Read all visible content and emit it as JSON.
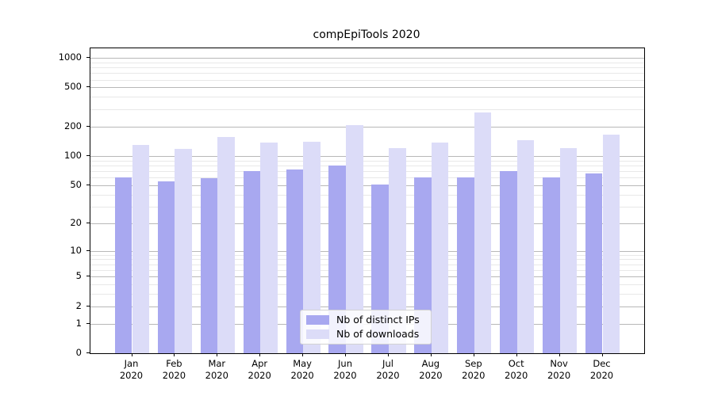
{
  "title": "compEpiTools 2020",
  "chart_data": {
    "type": "bar",
    "title": "compEpiTools 2020",
    "categories": [
      "Jan",
      "Feb",
      "Mar",
      "Apr",
      "May",
      "Jun",
      "Jul",
      "Aug",
      "Sep",
      "Oct",
      "Nov",
      "Dec"
    ],
    "year_label": "2020",
    "series": [
      {
        "name": "Nb of distinct IPs",
        "color": "#a8a8f0",
        "values": [
          60,
          55,
          59,
          70,
          73,
          80,
          51,
          60,
          60,
          70,
          60,
          66
        ]
      },
      {
        "name": "Nb of downloads",
        "color": "#dcdcf8",
        "values": [
          130,
          118,
          155,
          138,
          141,
          206,
          121,
          136,
          280,
          144,
          121,
          166
        ]
      }
    ],
    "xlabel": "",
    "ylabel": "",
    "y_scale": "log1p",
    "y_max": 1250,
    "y_ticks": [
      0,
      1,
      2,
      5,
      10,
      20,
      50,
      100,
      200,
      500,
      1000
    ],
    "y_minor_ticks": [
      3,
      4,
      6,
      7,
      8,
      9,
      30,
      40,
      60,
      70,
      80,
      90,
      300,
      400,
      600,
      700,
      800,
      900
    ],
    "grid": true,
    "legend_position": "lower-center"
  }
}
